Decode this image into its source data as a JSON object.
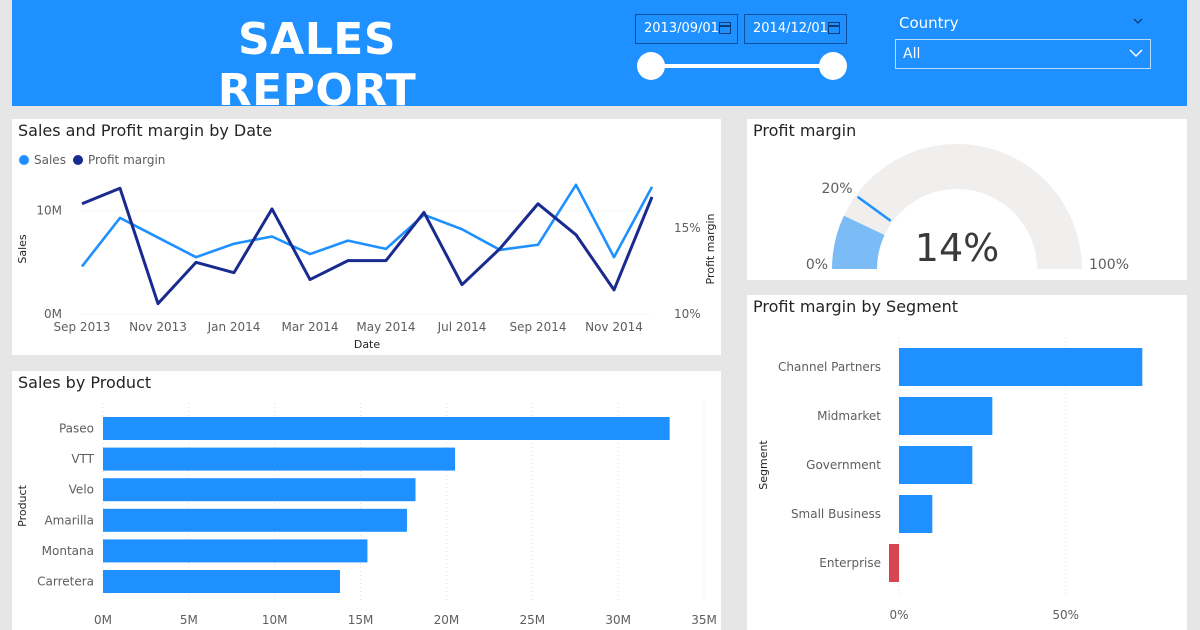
{
  "header": {
    "title": "SALES REPORT",
    "start_date": "2013/09/01",
    "end_date": "2014/12/01",
    "slider_start_fraction": 0.0,
    "slider_end_fraction": 1.0
  },
  "country_filter": {
    "label": "Country",
    "selected": "All"
  },
  "colors": {
    "header_bg": "#1e90ff",
    "sales": "#1e90ff",
    "profit_margin": "#1a2b8f",
    "bar": "#1e90ff",
    "negative_bar": "#d64550",
    "gauge_fill": "#7cbcf6",
    "gauge_bg": "#f0efee",
    "gauge_target": "#1e90ff"
  },
  "line_panel": {
    "title": "Sales and Profit margin by Date",
    "legend": [
      "Sales",
      "Profit margin"
    ]
  },
  "gauge_panel": {
    "title": "Profit margin",
    "value_label": "14%",
    "min_label": "0%",
    "max_label": "100%",
    "target_label": "20%"
  },
  "product_panel": {
    "title": "Sales by Product"
  },
  "segment_panel": {
    "title": "Profit margin by Segment"
  },
  "chart_data": [
    {
      "type": "line",
      "title": "Sales and Profit margin by Date",
      "xlabel": "Date",
      "ylabel": "Sales",
      "y2label": "Profit margin",
      "x": [
        "Sep 2013",
        "Oct 2013",
        "Nov 2013",
        "Dec 2013",
        "Jan 2014",
        "Feb 2014",
        "Mar 2014",
        "Apr 2014",
        "May 2014",
        "Jun 2014",
        "Jul 2014",
        "Aug 2014",
        "Sep 2014",
        "Oct 2014",
        "Nov 2014",
        "Dec 2014"
      ],
      "x_tick_labels": [
        "Sep 2013",
        "Nov 2013",
        "Jan 2014",
        "Mar 2014",
        "May 2014",
        "Jul 2014",
        "Sep 2014",
        "Nov 2014"
      ],
      "series": [
        {
          "name": "Sales",
          "axis": "left",
          "values": [
            4.6,
            9.3,
            7.4,
            5.5,
            6.8,
            7.5,
            5.8,
            7.1,
            6.3,
            9.6,
            8.2,
            6.2,
            6.7,
            12.5,
            5.5,
            12.3
          ]
        },
        {
          "name": "Profit margin",
          "axis": "right",
          "values": [
            16.4,
            17.3,
            10.6,
            13.0,
            12.4,
            16.1,
            12.0,
            13.1,
            13.1,
            15.9,
            11.7,
            13.8,
            16.4,
            14.6,
            11.4,
            16.8
          ]
        }
      ],
      "ylim": [
        0,
        15
      ],
      "y_ticks": [
        {
          "value": 0,
          "label": "0M"
        },
        {
          "value": 10,
          "label": "10M"
        }
      ],
      "y2lim": [
        10,
        19
      ],
      "y2_ticks": [
        {
          "value": 10,
          "label": "10%"
        },
        {
          "value": 15,
          "label": "15%"
        }
      ]
    },
    {
      "type": "gauge",
      "title": "Profit margin",
      "value": 14,
      "min": 0,
      "max": 100,
      "target": 20
    },
    {
      "type": "bar",
      "orientation": "horizontal",
      "title": "Sales by Product",
      "ylabel": "Product",
      "categories": [
        "Paseo",
        "VTT",
        "Velo",
        "Amarilla",
        "Montana",
        "Carretera"
      ],
      "values": [
        33.0,
        20.5,
        18.2,
        17.7,
        15.4,
        13.8
      ],
      "xlim": [
        0,
        35
      ],
      "x_ticks": [
        {
          "value": 0,
          "label": "0M"
        },
        {
          "value": 5,
          "label": "5M"
        },
        {
          "value": 10,
          "label": "10M"
        },
        {
          "value": 15,
          "label": "15M"
        },
        {
          "value": 20,
          "label": "20M"
        },
        {
          "value": 25,
          "label": "25M"
        },
        {
          "value": 30,
          "label": "30M"
        },
        {
          "value": 35,
          "label": "35M"
        }
      ]
    },
    {
      "type": "bar",
      "orientation": "horizontal",
      "title": "Profit margin by Segment",
      "ylabel": "Segment",
      "categories": [
        "Channel Partners",
        "Midmarket",
        "Government",
        "Small Business",
        "Enterprise"
      ],
      "values": [
        73,
        28,
        22,
        10,
        -3
      ],
      "xlim": [
        -3,
        75
      ],
      "x_ticks": [
        {
          "value": 0,
          "label": "0%"
        },
        {
          "value": 50,
          "label": "50%"
        }
      ]
    }
  ]
}
